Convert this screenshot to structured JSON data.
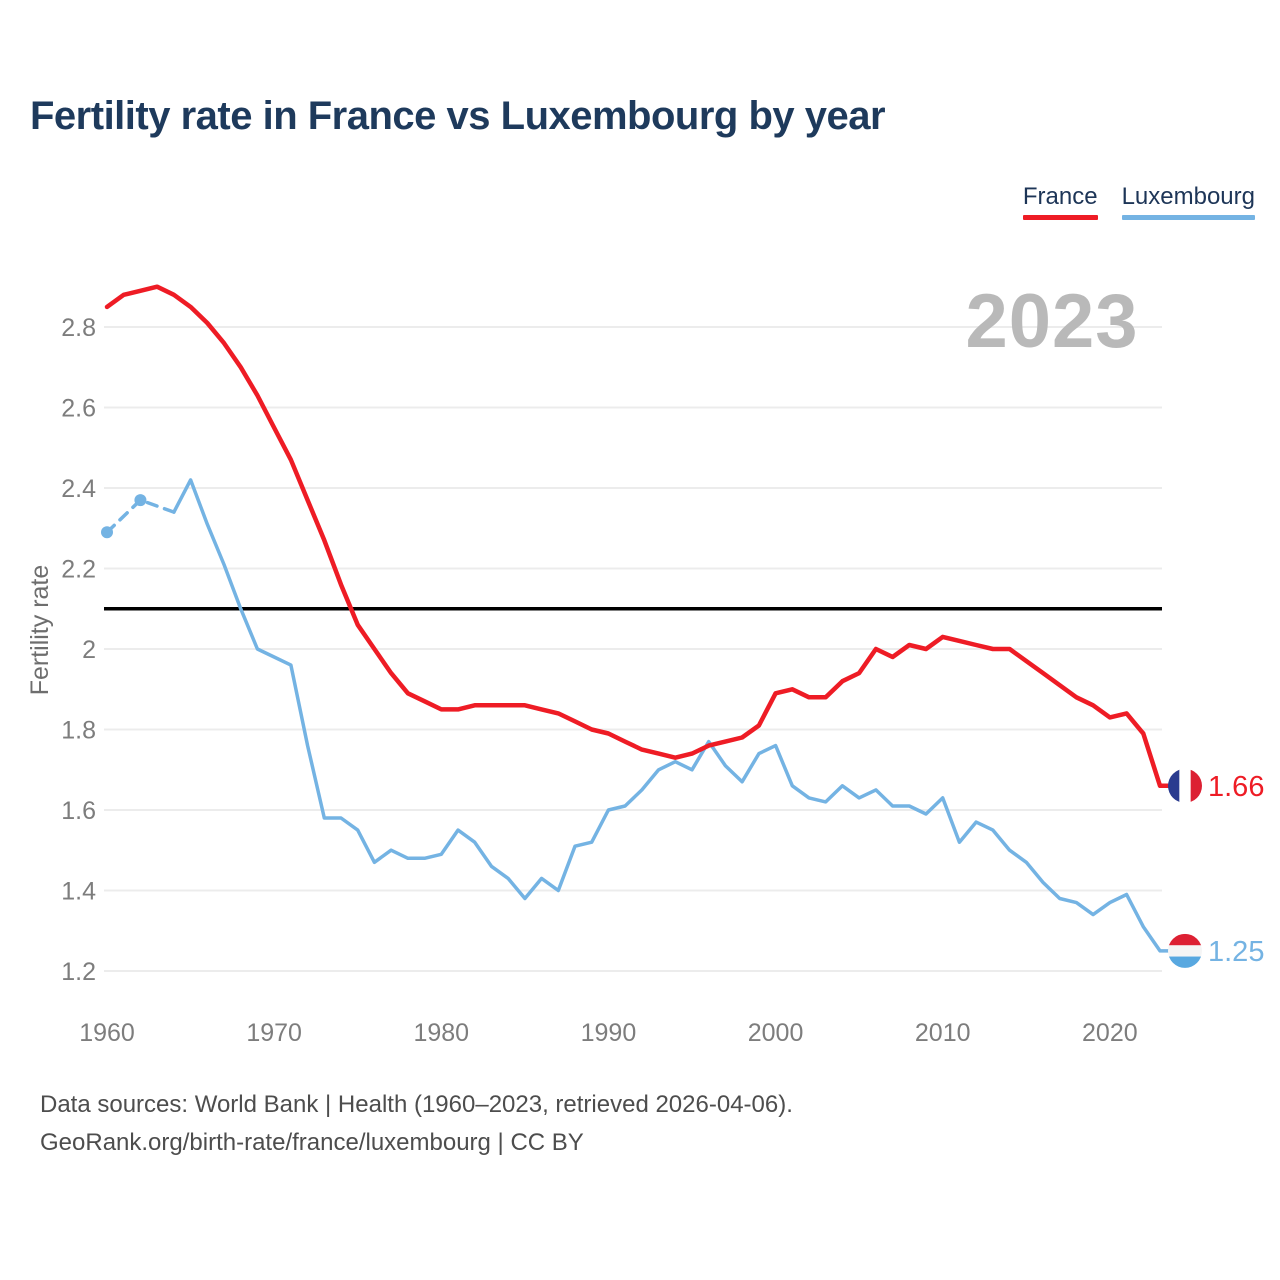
{
  "title": "Fertility rate in France vs Luxembourg by year",
  "watermark": "2023",
  "legend": [
    {
      "label": "France",
      "color": "#ee1c25"
    },
    {
      "label": "Luxembourg",
      "color": "#74b3e3"
    }
  ],
  "axes": {
    "y_label": "Fertility rate",
    "y_ticks": [
      {
        "value": 2.8,
        "label": "2.8"
      },
      {
        "value": 2.6,
        "label": "2.6"
      },
      {
        "value": 2.4,
        "label": "2.4"
      },
      {
        "value": 2.2,
        "label": "2.2"
      },
      {
        "value": 2.0,
        "label": "2"
      },
      {
        "value": 1.8,
        "label": "1.8"
      },
      {
        "value": 1.6,
        "label": "1.6"
      },
      {
        "value": 1.4,
        "label": "1.4"
      },
      {
        "value": 1.2,
        "label": "1.2"
      }
    ],
    "x_ticks": [
      1960,
      1970,
      1980,
      1990,
      2000,
      2010,
      2020
    ]
  },
  "end_labels": [
    {
      "series": "France",
      "text": "1.66",
      "color": "#ee1c25",
      "flag": {
        "orientation": "vertical",
        "stripes": [
          "#2a3b8f",
          "#ffffff",
          "#dc2033"
        ]
      }
    },
    {
      "series": "Luxembourg",
      "text": "1.25",
      "color": "#74b3e3",
      "flag": {
        "orientation": "horizontal",
        "stripes": [
          "#dd2033",
          "#f5f5f5",
          "#58a8e0"
        ]
      }
    }
  ],
  "footer": {
    "line1": "Data sources: World Bank | Health (1960–2023, retrieved 2026-04-06).",
    "line2": "GeoRank.org/birth-rate/france/luxembourg | CC BY"
  },
  "chart_data": {
    "type": "line",
    "title": "Fertility rate in France vs Luxembourg by year",
    "xlabel": "",
    "ylabel": "Fertility rate",
    "x_start": 1960,
    "x_end": 2023,
    "ylim": [
      1.1,
      2.95
    ],
    "grid": "horizontal",
    "legend_position": "top-right",
    "reference_line": {
      "value": 2.1,
      "color": "#000000",
      "note": "replacement-level line"
    },
    "series": [
      {
        "name": "France",
        "color": "#ee1c25",
        "style": "solid",
        "last_value_label": "1.66",
        "values": [
          2.85,
          2.88,
          2.89,
          2.9,
          2.88,
          2.85,
          2.81,
          2.76,
          2.7,
          2.63,
          2.55,
          2.47,
          2.37,
          2.27,
          2.16,
          2.06,
          2.0,
          1.94,
          1.89,
          1.87,
          1.85,
          1.85,
          1.86,
          1.86,
          1.86,
          1.86,
          1.85,
          1.84,
          1.82,
          1.8,
          1.79,
          1.77,
          1.75,
          1.74,
          1.73,
          1.74,
          1.76,
          1.77,
          1.78,
          1.81,
          1.89,
          1.9,
          1.88,
          1.88,
          1.92,
          1.94,
          2.0,
          1.98,
          2.01,
          2.0,
          2.03,
          2.02,
          2.01,
          2.0,
          2.0,
          1.97,
          1.94,
          1.91,
          1.88,
          1.86,
          1.83,
          1.84,
          1.79,
          1.66
        ]
      },
      {
        "name": "Luxembourg",
        "color": "#74b3e3",
        "style": "dashed-then-solid",
        "dashed_through_year": 1964,
        "marker_years": [
          1960,
          1962
        ],
        "last_value_label": "1.25",
        "values": [
          2.29,
          null,
          2.37,
          null,
          2.34,
          2.42,
          2.31,
          2.21,
          2.1,
          2.0,
          1.98,
          1.96,
          1.76,
          1.58,
          1.58,
          1.55,
          1.47,
          1.5,
          1.48,
          1.48,
          1.49,
          1.55,
          1.52,
          1.46,
          1.43,
          1.38,
          1.43,
          1.4,
          1.51,
          1.52,
          1.6,
          1.61,
          1.65,
          1.7,
          1.72,
          1.7,
          1.77,
          1.71,
          1.67,
          1.74,
          1.76,
          1.66,
          1.63,
          1.62,
          1.66,
          1.63,
          1.65,
          1.61,
          1.61,
          1.59,
          1.63,
          1.52,
          1.57,
          1.55,
          1.5,
          1.47,
          1.42,
          1.38,
          1.37,
          1.34,
          1.37,
          1.39,
          1.31,
          1.25
        ]
      }
    ]
  }
}
